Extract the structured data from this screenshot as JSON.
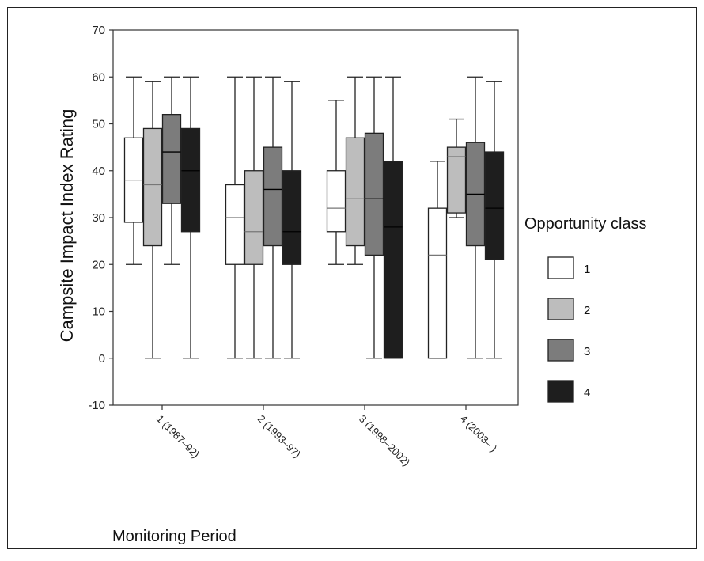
{
  "chart_data": {
    "type": "boxplot",
    "ylabel": "Campsite Impact Index Rating",
    "xlabel": "Monitoring Period",
    "ylim": [
      -10,
      70
    ],
    "yticks": [
      -10,
      0,
      10,
      20,
      30,
      40,
      50,
      60,
      70
    ],
    "categories": [
      "1 (1987–92)",
      "2 (1993–97)",
      "3 (1998–2002)",
      "4 (2003– )"
    ],
    "legend": {
      "title": "Opportunity class",
      "placement": "right",
      "items": [
        "1",
        "2",
        "3",
        "4"
      ]
    },
    "series": [
      {
        "name": "1",
        "color": "#ffffff",
        "boxes": [
          {
            "min": 20,
            "q1": 29,
            "median": 38,
            "q3": 47,
            "max": 60
          },
          {
            "min": 0,
            "q1": 20,
            "median": 30,
            "q3": 37,
            "max": 60
          },
          {
            "min": 20,
            "q1": 27,
            "median": 32,
            "q3": 40,
            "max": 55
          },
          {
            "min": 0,
            "q1": 0,
            "median": 22,
            "q3": 32,
            "max": 42
          }
        ]
      },
      {
        "name": "2",
        "color": "#bdbdbd",
        "boxes": [
          {
            "min": 0,
            "q1": 24,
            "median": 37,
            "q3": 49,
            "max": 59
          },
          {
            "min": 0,
            "q1": 20,
            "median": 27,
            "q3": 40,
            "max": 60
          },
          {
            "min": 20,
            "q1": 24,
            "median": 34,
            "q3": 47,
            "max": 60
          },
          {
            "min": 30,
            "q1": 31,
            "median": 43,
            "q3": 45,
            "max": 51
          }
        ]
      },
      {
        "name": "3",
        "color": "#7c7c7c",
        "boxes": [
          {
            "min": 20,
            "q1": 33,
            "median": 44,
            "q3": 52,
            "max": 60
          },
          {
            "min": 0,
            "q1": 24,
            "median": 36,
            "q3": 45,
            "max": 60
          },
          {
            "min": 0,
            "q1": 22,
            "median": 34,
            "q3": 48,
            "max": 60
          },
          {
            "min": 0,
            "q1": 24,
            "median": 35,
            "q3": 46,
            "max": 60
          }
        ]
      },
      {
        "name": "4",
        "color": "#1e1e1e",
        "boxes": [
          {
            "min": 0,
            "q1": 27,
            "median": 40,
            "q3": 49,
            "max": 60
          },
          {
            "min": 0,
            "q1": 20,
            "median": 27,
            "q3": 40,
            "max": 59
          },
          {
            "min": 0,
            "q1": 0,
            "median": 28,
            "q3": 42,
            "max": 60
          },
          {
            "min": 0,
            "q1": 21,
            "median": 32,
            "q3": 44,
            "max": 59
          }
        ]
      }
    ]
  }
}
